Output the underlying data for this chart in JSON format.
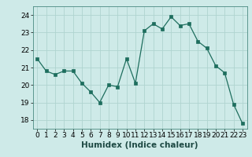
{
  "x": [
    0,
    1,
    2,
    3,
    4,
    5,
    6,
    7,
    8,
    9,
    10,
    11,
    12,
    13,
    14,
    15,
    16,
    17,
    18,
    19,
    20,
    21,
    22,
    23
  ],
  "y": [
    21.5,
    20.8,
    20.6,
    20.8,
    20.8,
    20.1,
    19.6,
    19.0,
    20.0,
    19.9,
    21.5,
    20.1,
    23.1,
    23.5,
    23.2,
    23.9,
    23.4,
    23.5,
    22.5,
    22.1,
    21.1,
    20.7,
    18.9,
    17.8
  ],
  "xlabel": "Humidex (Indice chaleur)",
  "xlim": [
    -0.5,
    23.5
  ],
  "ylim": [
    17.5,
    24.5
  ],
  "yticks": [
    18,
    19,
    20,
    21,
    22,
    23,
    24
  ],
  "xticks": [
    0,
    1,
    2,
    3,
    4,
    5,
    6,
    7,
    8,
    9,
    10,
    11,
    12,
    13,
    14,
    15,
    16,
    17,
    18,
    19,
    20,
    21,
    22,
    23
  ],
  "line_color": "#1e6e5e",
  "bg_color": "#ceeae8",
  "grid_color": "#afd4d0",
  "label_fontsize": 7.5,
  "tick_fontsize": 6.5
}
